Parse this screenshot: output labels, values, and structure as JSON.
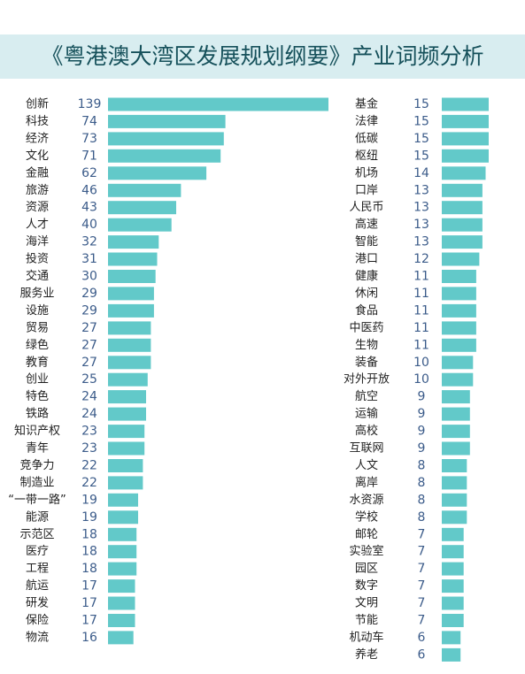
{
  "chart_data": {
    "type": "bar",
    "orientation": "horizontal",
    "title": "《粤港澳大湾区发展规划纲要》产业词频分析",
    "bar_color": "#62c9c9",
    "title_band_color": "#d8edf0",
    "title_color": "#15505a",
    "value_color": "#3c5c8a",
    "columns": [
      {
        "categories": [
          "创新",
          "科技",
          "经济",
          "文化",
          "金融",
          "旅游",
          "资源",
          "人才",
          "海洋",
          "投资",
          "交通",
          "服务业",
          "设施",
          "贸易",
          "绿色",
          "教育",
          "创业",
          "特色",
          "铁路",
          "知识产权",
          "青年",
          "竞争力",
          "制造业",
          "“一带一路”",
          "能源",
          "示范区",
          "医疗",
          "工程",
          "航运",
          "研发",
          "保险",
          "物流"
        ],
        "values": [
          139,
          74,
          73,
          71,
          62,
          46,
          43,
          40,
          32,
          31,
          30,
          29,
          29,
          27,
          27,
          27,
          25,
          24,
          24,
          23,
          23,
          22,
          22,
          19,
          19,
          18,
          18,
          18,
          17,
          17,
          17,
          16
        ]
      },
      {
        "categories": [
          "基金",
          "法律",
          "低碳",
          "枢纽",
          "机场",
          "口岸",
          "人民币",
          "高速",
          "智能",
          "港口",
          "健康",
          "休闲",
          "食品",
          "中医药",
          "生物",
          "装备",
          "对外开放",
          "航空",
          "运输",
          "高校",
          "互联网",
          "人文",
          "离岸",
          "水资源",
          "学校",
          "邮轮",
          "实验室",
          "园区",
          "数字",
          "文明",
          "节能",
          "机动车",
          "养老"
        ],
        "values": [
          15,
          15,
          15,
          15,
          14,
          13,
          13,
          13,
          13,
          12,
          11,
          11,
          11,
          11,
          11,
          10,
          10,
          9,
          9,
          9,
          9,
          8,
          8,
          8,
          8,
          7,
          7,
          7,
          7,
          7,
          7,
          6,
          6
        ]
      }
    ]
  }
}
